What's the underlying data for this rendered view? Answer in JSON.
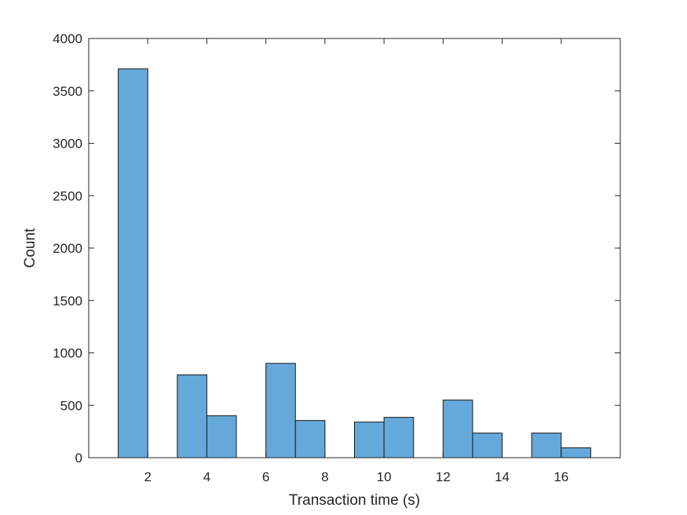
{
  "chart_data": {
    "type": "bar",
    "xlabel": "Transaction time (s)",
    "ylabel": "Count",
    "xlim": [
      0,
      18
    ],
    "ylim": [
      0,
      4000
    ],
    "xticks": [
      2,
      4,
      6,
      8,
      10,
      12,
      14,
      16
    ],
    "xtick_labels": [
      "2",
      "4",
      "6",
      "8",
      "10",
      "12",
      "14",
      "16"
    ],
    "yticks": [
      0,
      500,
      1000,
      1500,
      2000,
      2500,
      3000,
      3500,
      4000
    ],
    "ytick_labels": [
      "0",
      "500",
      "1000",
      "1500",
      "2000",
      "2500",
      "3000",
      "3500",
      "4000"
    ],
    "grid": false,
    "bar_color": "#64a9d9",
    "bins": [
      {
        "x0": 1.0,
        "x1": 2.0,
        "value": 3710
      },
      {
        "x0": 3.0,
        "x1": 4.0,
        "value": 790
      },
      {
        "x0": 4.0,
        "x1": 5.0,
        "value": 400
      },
      {
        "x0": 6.0,
        "x1": 7.0,
        "value": 900
      },
      {
        "x0": 7.0,
        "x1": 8.0,
        "value": 355
      },
      {
        "x0": 9.0,
        "x1": 10.0,
        "value": 340
      },
      {
        "x0": 10.0,
        "x1": 11.0,
        "value": 385
      },
      {
        "x0": 12.0,
        "x1": 13.0,
        "value": 550
      },
      {
        "x0": 13.0,
        "x1": 14.0,
        "value": 235
      },
      {
        "x0": 15.0,
        "x1": 16.0,
        "value": 235
      },
      {
        "x0": 16.0,
        "x1": 17.0,
        "value": 95
      }
    ]
  }
}
